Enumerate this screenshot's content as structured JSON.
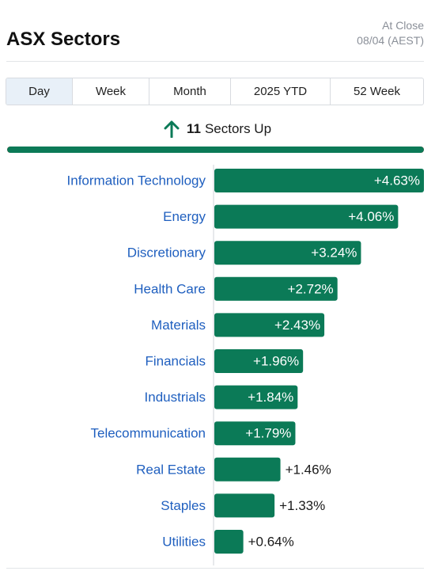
{
  "header": {
    "title": "ASX Sectors",
    "status_line1": "At Close",
    "status_line2": "08/04 (AEST)"
  },
  "tabs": [
    {
      "label": "Day",
      "active": true
    },
    {
      "label": "Week",
      "active": false
    },
    {
      "label": "Month",
      "active": false
    },
    {
      "label": "2025 YTD",
      "active": false
    },
    {
      "label": "52 Week",
      "active": false
    }
  ],
  "summary": {
    "count": "11",
    "text": "Sectors Up",
    "up_fraction": 1.0
  },
  "colors": {
    "positive": "#0b7a57",
    "negative": "#e23b3b",
    "label_link": "#1f5fbf"
  },
  "chart_data": {
    "type": "bar",
    "orientation": "horizontal",
    "categories": [
      "Information Technology",
      "Energy",
      "Discretionary",
      "Health Care",
      "Materials",
      "Financials",
      "Industrials",
      "Telecommunication",
      "Real Estate",
      "Staples",
      "Utilities"
    ],
    "values": [
      4.63,
      4.06,
      3.24,
      2.72,
      2.43,
      1.96,
      1.84,
      1.79,
      1.46,
      1.33,
      0.64
    ],
    "value_labels": [
      "+4.63%",
      "+4.06%",
      "+3.24%",
      "+2.72%",
      "+2.43%",
      "+1.96%",
      "+1.84%",
      "+1.79%",
      "+1.46%",
      "+1.33%",
      "+0.64%"
    ],
    "xlim": [
      0,
      4.63
    ],
    "grid": false,
    "legend": "none"
  }
}
